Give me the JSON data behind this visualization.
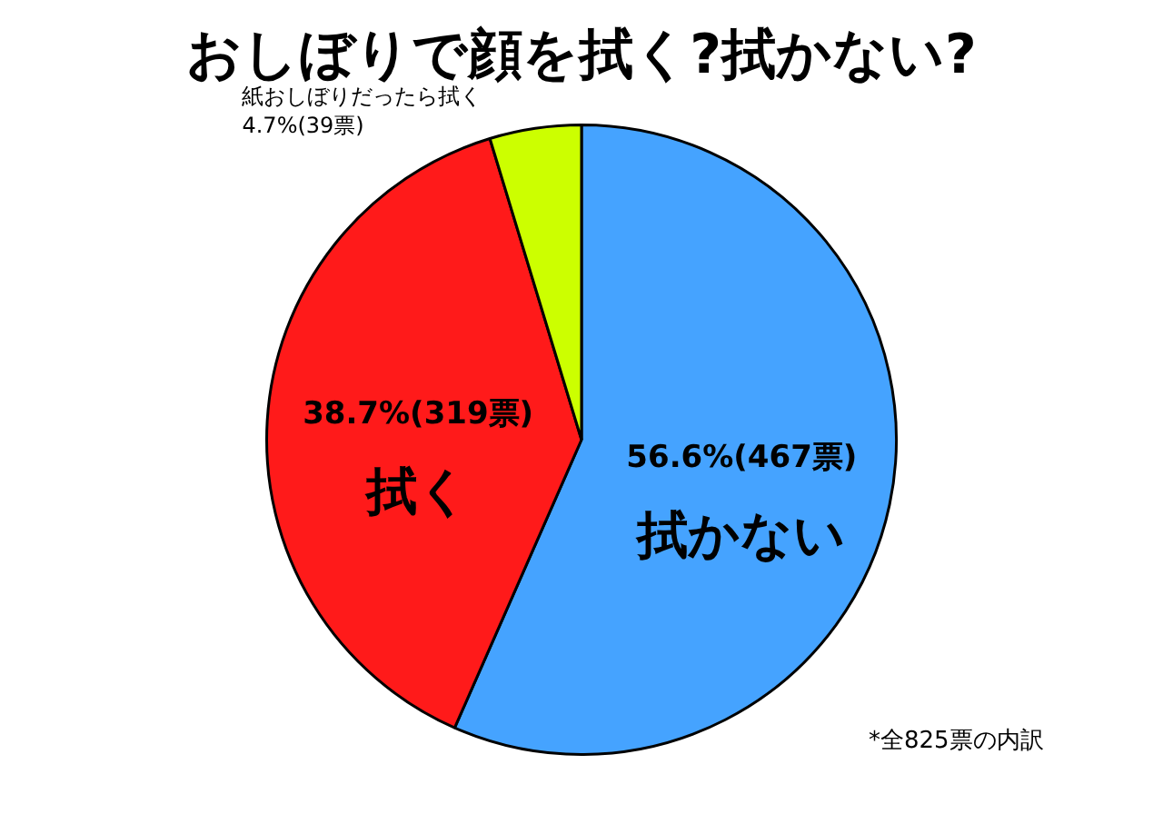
{
  "chart_data": {
    "type": "pie",
    "title": "おしぼりで顔を拭く?拭かない?",
    "categories": [
      "拭かない",
      "拭く",
      "紙おしぼりだったら拭く"
    ],
    "values": [
      56.6,
      38.7,
      4.7
    ],
    "colors": [
      "#45a3ff",
      "#ff1a1a",
      "#ccff00"
    ],
    "value_labels": [
      "56.6%(467票)",
      "38.7%(319票)",
      "4.7%(39票)"
    ],
    "annotations": [
      "*全825票の内訳"
    ],
    "legend": false
  }
}
